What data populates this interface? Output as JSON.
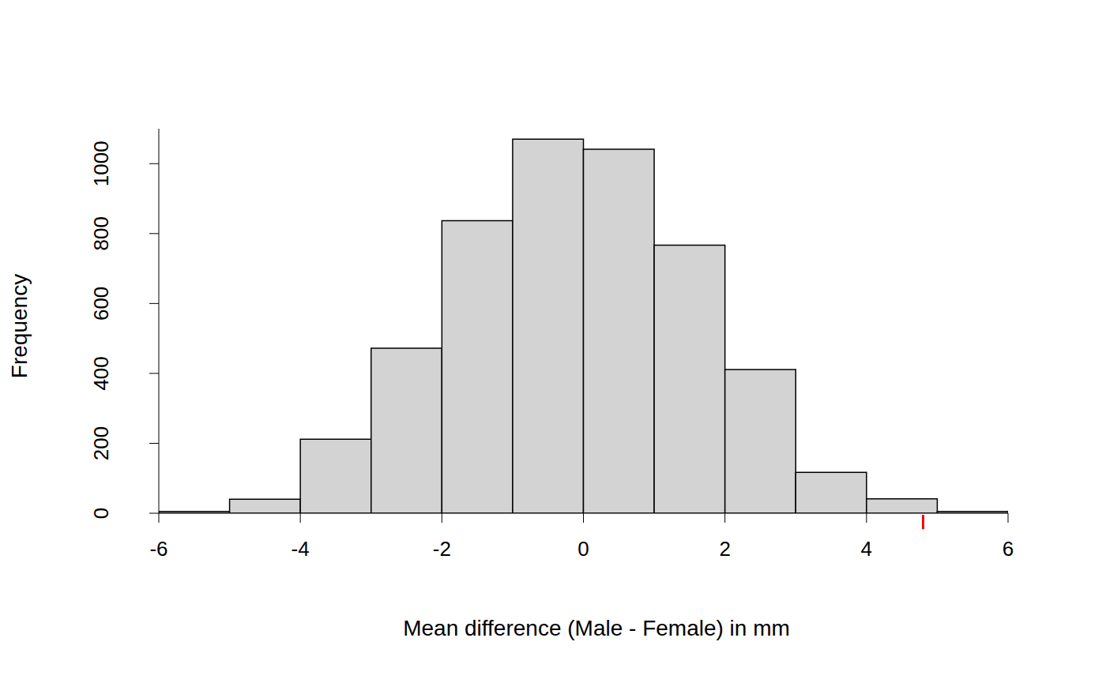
{
  "chart_data": {
    "type": "histogram",
    "x_label": "Mean difference (Male - Female) in mm",
    "y_label": "Frequency",
    "bins": [
      -6,
      -5,
      -4,
      -3,
      -2,
      -1,
      0,
      1,
      2,
      3,
      4,
      5,
      6
    ],
    "counts": [
      5,
      40,
      212,
      472,
      837,
      1070,
      1041,
      767,
      411,
      117,
      41,
      5
    ],
    "color": "#d3d3d3",
    "xlim": [
      -6,
      6
    ],
    "xticks": [
      -6,
      -4,
      -2,
      0,
      2,
      4,
      6
    ],
    "ylim": [
      0,
      1100
    ],
    "yticks": [
      0,
      200,
      400,
      600,
      800,
      1000
    ],
    "observed": {
      "value": 4.8,
      "color": "#ff0000"
    }
  }
}
